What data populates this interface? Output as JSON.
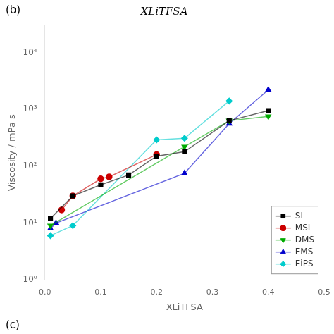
{
  "chart_data": {
    "type": "line",
    "title": "XLiTFSA",
    "x_label": "XLiTFSA",
    "y_label": "Viscosity / mPa s",
    "annotations": [
      "(b)",
      "(c)"
    ],
    "log": "y",
    "grid": false,
    "legend": "lower right",
    "xlim": [
      0,
      0.5
    ],
    "xticks": [
      {
        "value": 0,
        "label": "0.0"
      },
      0.1,
      0.2,
      0.3,
      0.4,
      0.5
    ],
    "ylim": [
      1,
      30000
    ],
    "yticks": [
      {
        "value": 1,
        "label": "10⁰"
      },
      {
        "value": 10,
        "label": "10¹"
      },
      {
        "value": 100,
        "label": "10²"
      },
      {
        "value": 1000,
        "label": "10³"
      },
      {
        "value": 10000,
        "label": "10⁴"
      }
    ],
    "series": [
      {
        "name": "SL",
        "color": "#000000",
        "marker": "square",
        "x": [
          0.01,
          0.05,
          0.1,
          0.15,
          0.2,
          0.25,
          0.33,
          0.4
        ],
        "values": [
          12,
          30,
          47,
          70,
          150,
          180,
          630,
          950
        ]
      },
      {
        "name": "MSL",
        "color": "#cc0000",
        "marker": "circle",
        "x": [
          0.03,
          0.05,
          0.1,
          0.115,
          0.2
        ],
        "values": [
          17,
          30,
          60,
          65,
          160
        ]
      },
      {
        "name": "DMS",
        "color": "#00aa00",
        "marker": "triangle-down",
        "x": [
          0.01,
          0.25,
          0.33,
          0.4
        ],
        "values": [
          9,
          220,
          630,
          750
        ]
      },
      {
        "name": "EMS",
        "color": "#0000cc",
        "marker": "triangle-up",
        "x": [
          0.01,
          0.02,
          0.25,
          0.33,
          0.4
        ],
        "values": [
          8,
          10,
          75,
          560,
          2200
        ]
      },
      {
        "name": "EiPS",
        "color": "#00cccc",
        "marker": "diamond",
        "x": [
          0.01,
          0.05,
          0.2,
          0.25,
          0.33
        ],
        "values": [
          6,
          9,
          290,
          310,
          1400
        ]
      }
    ]
  }
}
